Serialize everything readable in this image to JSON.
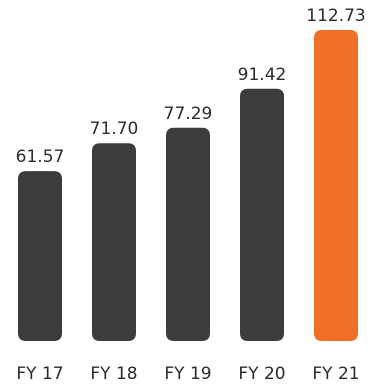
{
  "chart_data": {
    "type": "bar",
    "categories": [
      "FY 17",
      "FY 18",
      "FY 19",
      "FY 20",
      "FY 21"
    ],
    "values": [
      61.57,
      71.7,
      77.29,
      91.42,
      112.73
    ],
    "value_labels": [
      "61.57",
      "71.70",
      "77.29",
      "91.42",
      "112.73"
    ],
    "colors": [
      "#3d3b3c",
      "#3d3b3c",
      "#3d3b3c",
      "#3d3b3c",
      "#f07125"
    ],
    "grid": false,
    "legend": "none",
    "ylim": [
      0,
      112.73
    ]
  }
}
